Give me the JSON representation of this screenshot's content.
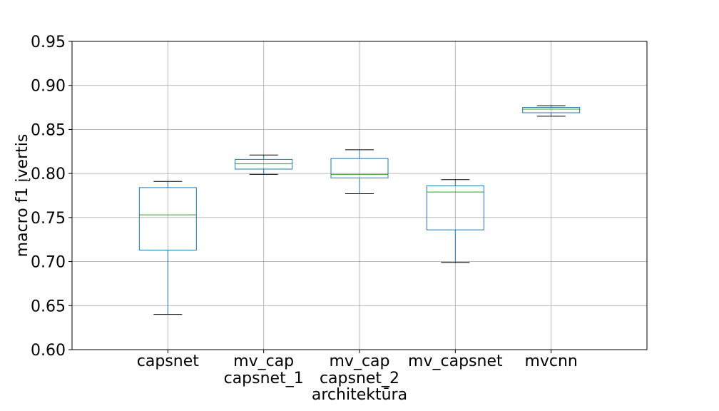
{
  "chart_data": {
    "type": "boxplot",
    "title": "",
    "xlabel": "architektūra",
    "ylabel": "macro f1 įvertis",
    "ylim": [
      0.6,
      0.95
    ],
    "yticks": [
      "0.60",
      "0.65",
      "0.70",
      "0.75",
      "0.80",
      "0.85",
      "0.90",
      "0.95"
    ],
    "grid": true,
    "colors": {
      "box": "#1f77b4",
      "median": "#2ca02c",
      "whisker_cap": "#000000",
      "grid": "#b0b0b0"
    },
    "categories": [
      {
        "label": [
          "capsnet"
        ],
        "whislo": 0.64,
        "q1": 0.713,
        "med": 0.753,
        "q3": 0.784,
        "whishi": 0.791
      },
      {
        "label": [
          "mv_cap",
          "capsnet_1"
        ],
        "whislo": 0.799,
        "q1": 0.805,
        "med": 0.811,
        "q3": 0.816,
        "whishi": 0.821
      },
      {
        "label": [
          "mv_cap",
          "capsnet_2"
        ],
        "whislo": 0.777,
        "q1": 0.795,
        "med": 0.799,
        "q3": 0.817,
        "whishi": 0.827
      },
      {
        "label": [
          "mv_capsnet"
        ],
        "whislo": 0.699,
        "q1": 0.736,
        "med": 0.779,
        "q3": 0.786,
        "whishi": 0.793
      },
      {
        "label": [
          "mvcnn"
        ],
        "whislo": 0.865,
        "q1": 0.869,
        "med": 0.873,
        "q3": 0.875,
        "whishi": 0.877
      }
    ]
  }
}
